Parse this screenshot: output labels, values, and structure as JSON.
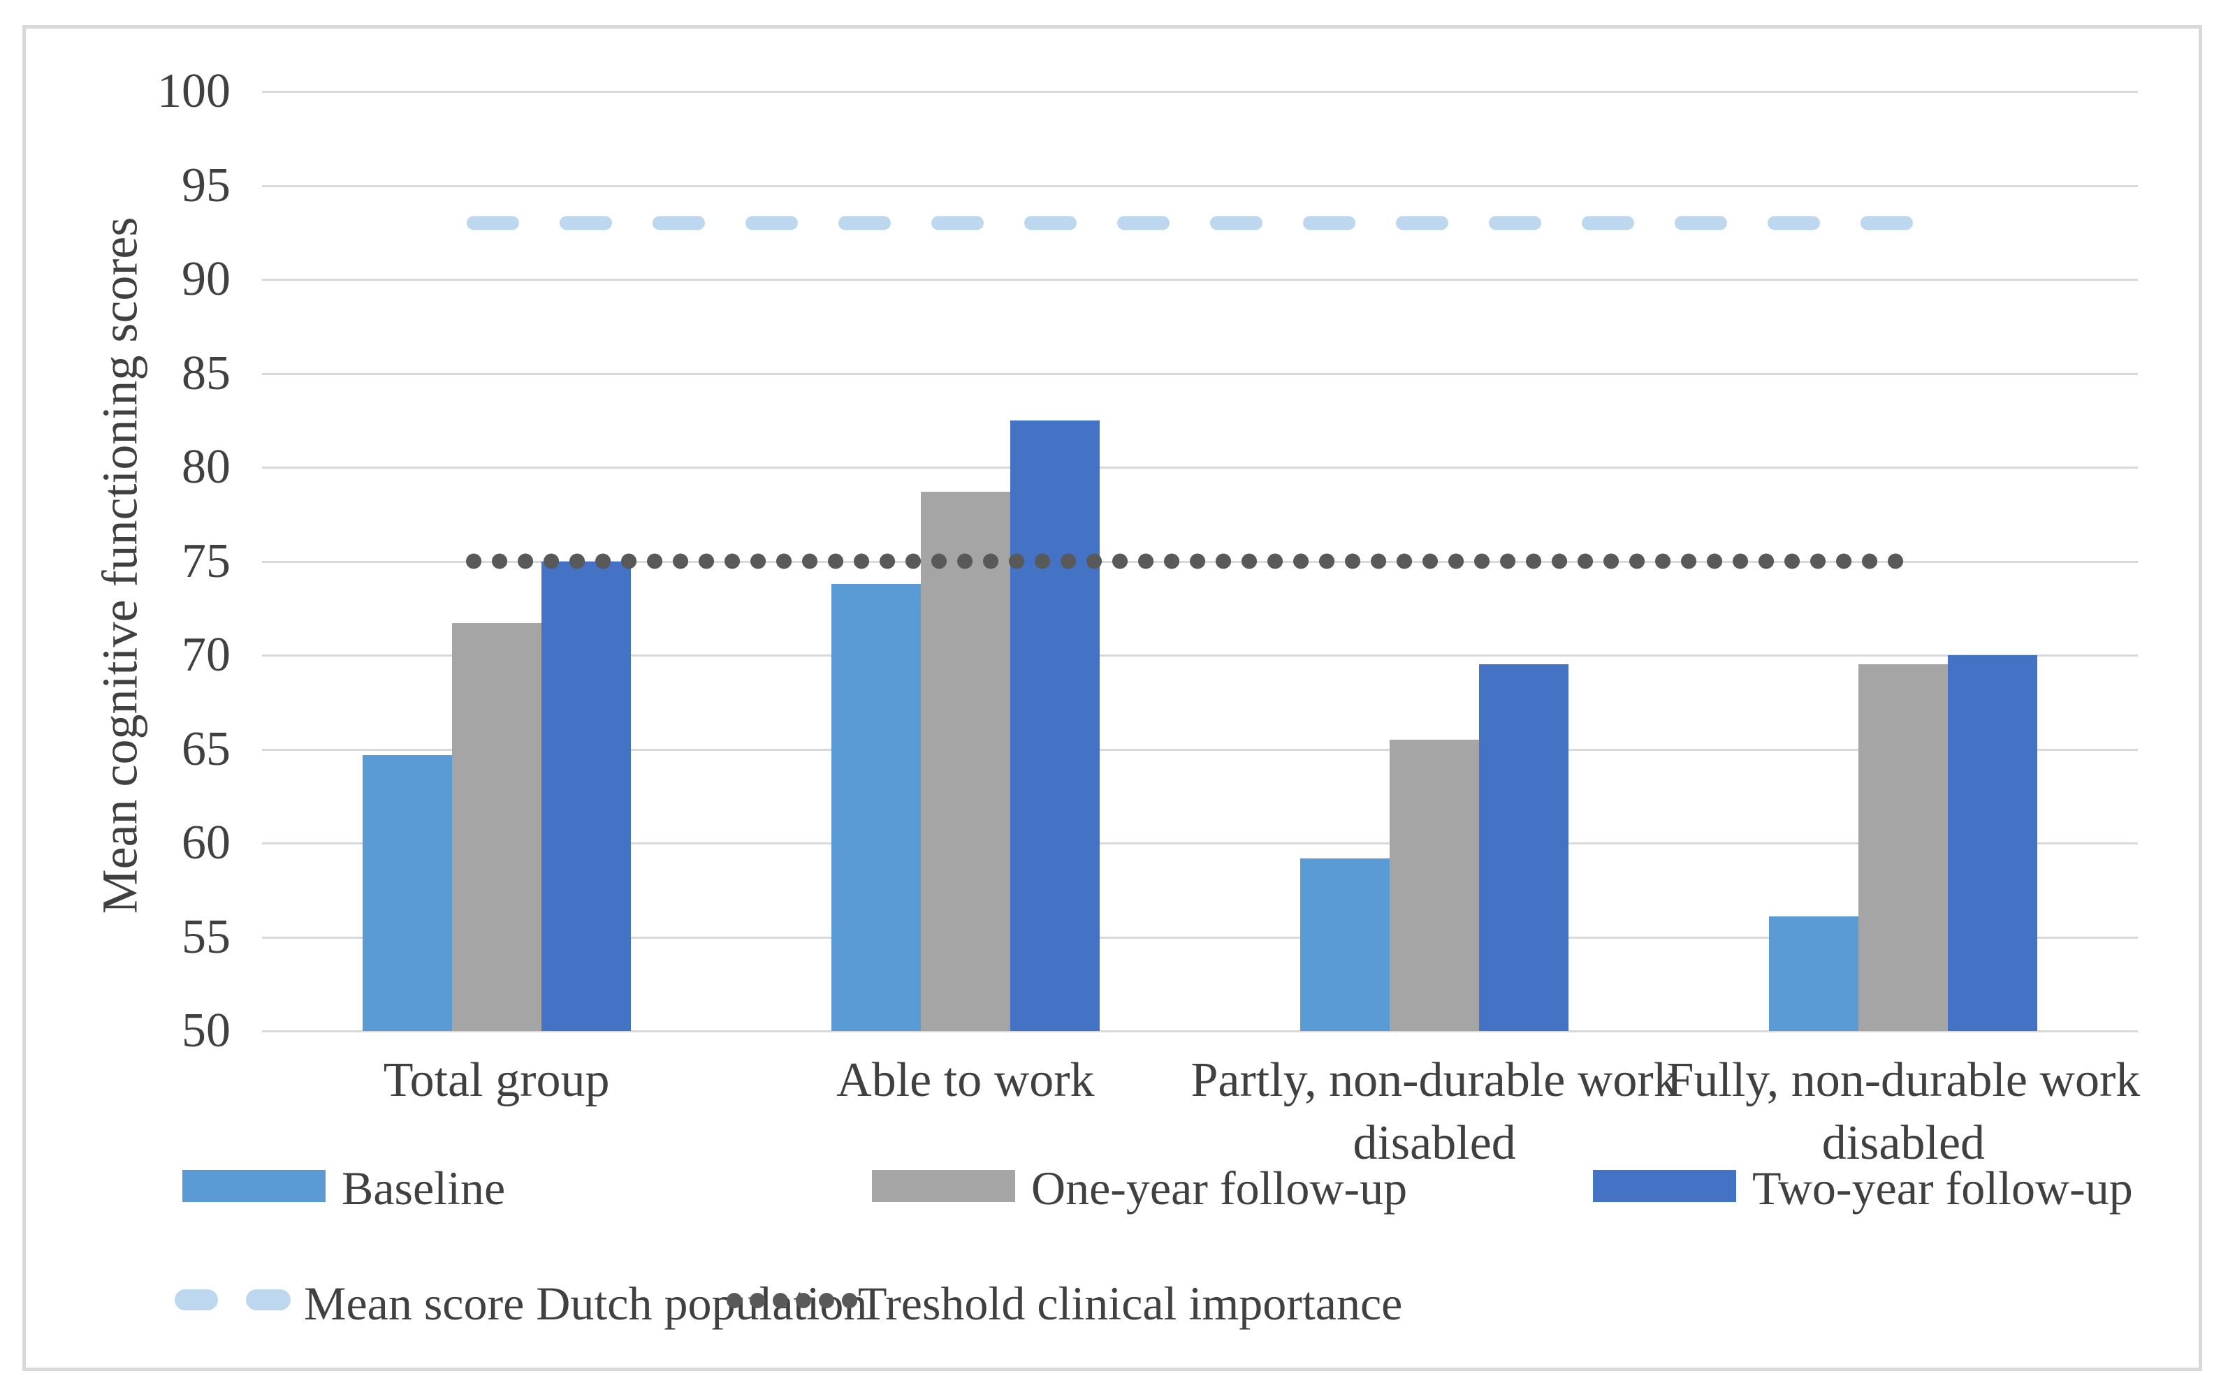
{
  "chart_data": {
    "type": "bar",
    "title": "",
    "xlabel": "",
    "ylabel": "Mean cognitive functioning scores",
    "ylim": [
      50,
      100
    ],
    "ytick_step": 5,
    "yticks": [
      100,
      95,
      90,
      85,
      80,
      75,
      70,
      65,
      60,
      55,
      50
    ],
    "grid": "horizontal",
    "grid_color": "#D9D9D9",
    "categories": [
      "Total group",
      "Able to work",
      "Partly, non-durable work disabled",
      "Fully, non-durable work disabled"
    ],
    "series": [
      {
        "name": "Baseline",
        "color": "#5B9BD5",
        "values": [
          64.7,
          73.8,
          59.2,
          56.1
        ]
      },
      {
        "name": "One-year follow-up",
        "color": "#A5A5A5",
        "values": [
          71.7,
          78.7,
          65.5,
          69.5
        ]
      },
      {
        "name": "Two-year follow-up",
        "color": "#4472C4",
        "values": [
          75.0,
          82.5,
          69.5,
          70.0
        ]
      }
    ],
    "reference_lines": [
      {
        "name": "Mean score Dutch population",
        "value": 93,
        "style": "dashed",
        "color": "#BDD7EE"
      },
      {
        "name": "Treshold clinical importance",
        "value": 75,
        "style": "dotted",
        "color": "#595959"
      }
    ],
    "legend_position": "bottom",
    "frame_color": "#D9D9D9",
    "text_color": "#404040"
  }
}
